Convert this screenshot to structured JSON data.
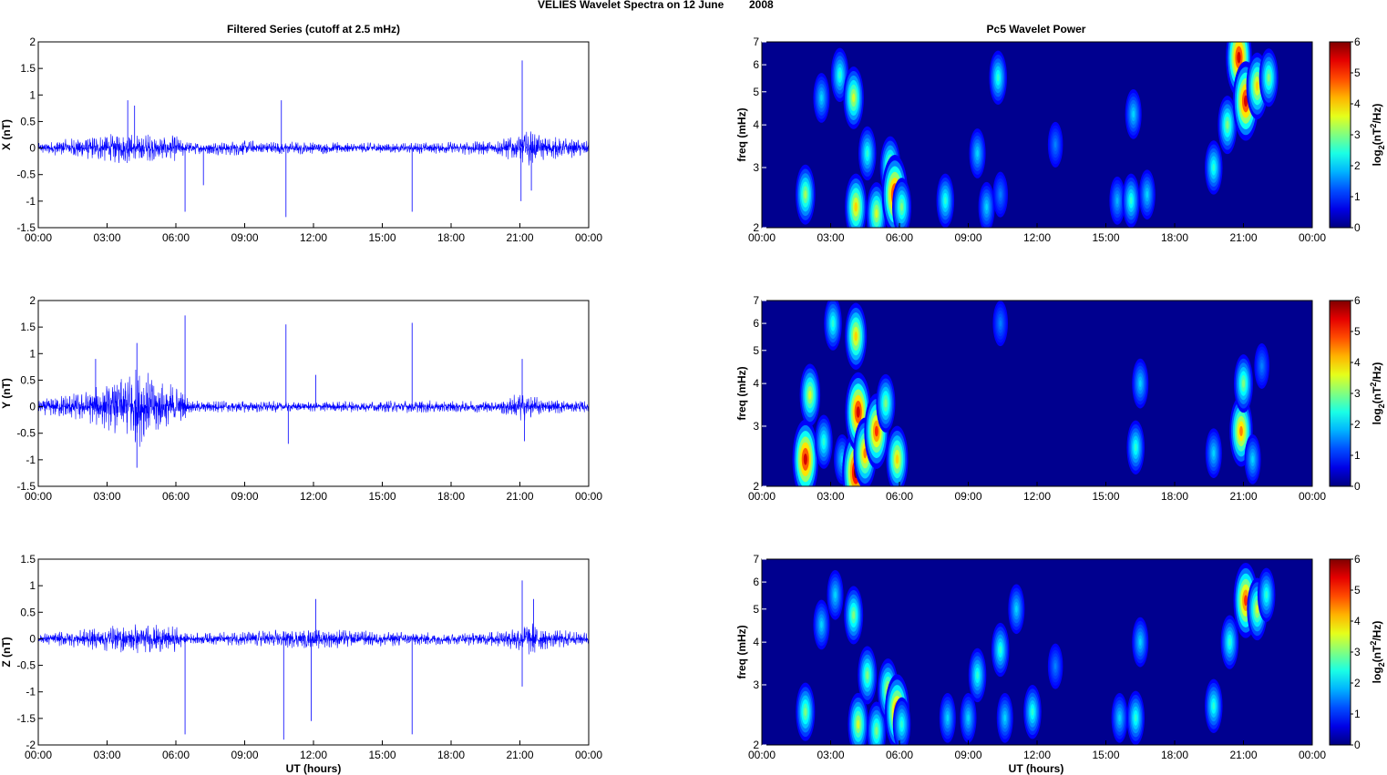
{
  "figure": {
    "title_left": "VELIES Wavelet Spectra on 12 June",
    "title_right": "2008",
    "left_column_title": "Filtered Series (cutoff at 2.5 mHz)",
    "right_column_title": "Pc5 Wavelet Power",
    "x_axis_label": "UT (hours)"
  },
  "colors": {
    "series_line": "#0000ff",
    "spectrogram_background": "#00008f"
  },
  "chart_data": [
    {
      "type": "line",
      "component": "X",
      "ylabel": "X (nT)",
      "xlim": [
        0,
        24
      ],
      "ylim": [
        -1.5,
        2
      ],
      "yticks": [
        -1.5,
        -1,
        -0.5,
        0,
        0.5,
        1,
        1.5,
        2
      ],
      "xticks": [
        "00:00",
        "03:00",
        "06:00",
        "09:00",
        "12:00",
        "15:00",
        "18:00",
        "21:00",
        "00:00"
      ],
      "noise_envelope": [
        [
          0,
          0.1
        ],
        [
          2,
          0.22
        ],
        [
          3.5,
          0.3
        ],
        [
          6,
          0.25
        ],
        [
          6.5,
          0.12
        ],
        [
          9,
          0.15
        ],
        [
          12,
          0.12
        ],
        [
          16,
          0.1
        ],
        [
          20,
          0.15
        ],
        [
          21,
          0.3
        ],
        [
          21.5,
          0.35
        ],
        [
          22,
          0.25
        ],
        [
          24,
          0.15
        ]
      ],
      "spikes": [
        [
          3.9,
          0.9
        ],
        [
          6.4,
          -1.2
        ],
        [
          7.2,
          -0.7
        ],
        [
          10.6,
          0.9
        ],
        [
          10.8,
          -1.3
        ],
        [
          16.3,
          -1.2
        ],
        [
          21.1,
          1.65
        ],
        [
          21.05,
          -1.0
        ],
        [
          21.5,
          -0.8
        ],
        [
          4.2,
          0.8
        ]
      ]
    },
    {
      "type": "line",
      "component": "Y",
      "ylabel": "Y (nT)",
      "xlim": [
        0,
        24
      ],
      "ylim": [
        -1.5,
        2
      ],
      "yticks": [
        -1.5,
        -1,
        -0.5,
        0,
        0.5,
        1,
        1.5,
        2
      ],
      "xticks": [
        "00:00",
        "03:00",
        "06:00",
        "09:00",
        "12:00",
        "15:00",
        "18:00",
        "21:00",
        "00:00"
      ],
      "noise_envelope": [
        [
          0,
          0.15
        ],
        [
          2,
          0.3
        ],
        [
          3.5,
          0.55
        ],
        [
          4.3,
          0.8
        ],
        [
          5.2,
          0.55
        ],
        [
          6.3,
          0.35
        ],
        [
          6.6,
          0.12
        ],
        [
          9,
          0.12
        ],
        [
          12,
          0.1
        ],
        [
          16,
          0.12
        ],
        [
          20,
          0.12
        ],
        [
          21,
          0.3
        ],
        [
          22,
          0.15
        ],
        [
          24,
          0.12
        ]
      ],
      "spikes": [
        [
          2.5,
          0.9
        ],
        [
          4.3,
          1.2
        ],
        [
          4.3,
          -1.15
        ],
        [
          6.4,
          1.72
        ],
        [
          10.8,
          1.55
        ],
        [
          10.9,
          -0.7
        ],
        [
          12.1,
          0.6
        ],
        [
          16.3,
          1.58
        ],
        [
          21.1,
          0.9
        ],
        [
          21.2,
          -0.65
        ]
      ]
    },
    {
      "type": "line",
      "component": "Z",
      "ylabel": "Z (nT)",
      "xlim": [
        0,
        24
      ],
      "ylim": [
        -2,
        1.5
      ],
      "yticks": [
        -2,
        -1.5,
        -1,
        -0.5,
        0,
        0.5,
        1,
        1.5
      ],
      "xticks": [
        "00:00",
        "03:00",
        "06:00",
        "09:00",
        "12:00",
        "15:00",
        "18:00",
        "21:00",
        "00:00"
      ],
      "noise_envelope": [
        [
          0,
          0.1
        ],
        [
          2,
          0.2
        ],
        [
          4,
          0.3
        ],
        [
          6,
          0.25
        ],
        [
          6.5,
          0.1
        ],
        [
          9,
          0.15
        ],
        [
          12,
          0.2
        ],
        [
          15,
          0.15
        ],
        [
          18,
          0.12
        ],
        [
          20,
          0.15
        ],
        [
          21.5,
          0.35
        ],
        [
          22.2,
          0.2
        ],
        [
          24,
          0.12
        ]
      ],
      "spikes": [
        [
          6.4,
          -1.8
        ],
        [
          10.7,
          -1.9
        ],
        [
          11.9,
          -1.55
        ],
        [
          12.1,
          0.75
        ],
        [
          16.3,
          -1.8
        ],
        [
          21.1,
          1.1
        ],
        [
          21.1,
          -0.9
        ],
        [
          21.6,
          0.75
        ]
      ]
    },
    {
      "type": "heatmap",
      "component": "X",
      "ylabel": "freq (mHz)",
      "colorbar_label": "log2(nT^2/Hz)",
      "xlim": [
        0,
        24
      ],
      "ylim": [
        2,
        7
      ],
      "yscale": "log",
      "yticks": [
        2,
        3,
        4,
        5,
        6,
        7
      ],
      "clim": [
        0,
        6
      ],
      "cticks": [
        0,
        1,
        2,
        3,
        4,
        5,
        6
      ],
      "xticks": [
        "00:00",
        "03:00",
        "06:00",
        "09:00",
        "12:00",
        "15:00",
        "18:00",
        "21:00",
        "00:00"
      ],
      "blobs": [
        [
          1.9,
          2.5,
          3.2
        ],
        [
          2.6,
          4.8,
          2.0
        ],
        [
          3.4,
          5.6,
          2.5
        ],
        [
          4.0,
          4.8,
          3.5
        ],
        [
          4.1,
          2.3,
          4.0
        ],
        [
          4.6,
          3.3,
          2.5
        ],
        [
          5.0,
          2.2,
          3.5
        ],
        [
          5.6,
          3.0,
          3.5
        ],
        [
          5.8,
          2.5,
          5.5
        ],
        [
          6.1,
          2.3,
          3.0
        ],
        [
          8.0,
          2.4,
          2.5
        ],
        [
          9.4,
          3.3,
          2.0
        ],
        [
          9.8,
          2.3,
          2.0
        ],
        [
          10.3,
          5.5,
          2.5
        ],
        [
          10.4,
          2.5,
          1.5
        ],
        [
          12.8,
          3.5,
          1.5
        ],
        [
          15.5,
          2.4,
          1.8
        ],
        [
          16.1,
          2.4,
          2.5
        ],
        [
          16.2,
          4.3,
          2.0
        ],
        [
          16.8,
          2.5,
          2.0
        ],
        [
          19.7,
          3.0,
          2.5
        ],
        [
          20.3,
          4.0,
          3.0
        ],
        [
          20.8,
          6.3,
          5.5
        ],
        [
          21.1,
          4.7,
          5.5
        ],
        [
          21.6,
          5.2,
          4.0
        ],
        [
          22.1,
          5.5,
          3.0
        ]
      ]
    },
    {
      "type": "heatmap",
      "component": "Y",
      "ylabel": "freq (mHz)",
      "colorbar_label": "log2(nT^2/Hz)",
      "xlim": [
        0,
        24
      ],
      "ylim": [
        2,
        7
      ],
      "yscale": "log",
      "yticks": [
        2,
        3,
        4,
        5,
        6,
        7
      ],
      "clim": [
        0,
        6
      ],
      "cticks": [
        0,
        1,
        2,
        3,
        4,
        5,
        6
      ],
      "xticks": [
        "00:00",
        "03:00",
        "06:00",
        "09:00",
        "12:00",
        "15:00",
        "18:00",
        "21:00",
        "00:00"
      ],
      "blobs": [
        [
          1.9,
          2.4,
          5.5
        ],
        [
          2.1,
          3.7,
          3.5
        ],
        [
          2.7,
          2.7,
          2.5
        ],
        [
          3.1,
          6.0,
          2.5
        ],
        [
          3.5,
          2.4,
          2.0
        ],
        [
          4.1,
          2.2,
          6.0
        ],
        [
          4.2,
          3.3,
          5.5
        ],
        [
          4.1,
          5.5,
          4.0
        ],
        [
          4.5,
          2.5,
          4.5
        ],
        [
          5.0,
          2.9,
          5.0
        ],
        [
          5.4,
          3.5,
          3.0
        ],
        [
          5.9,
          2.4,
          4.0
        ],
        [
          10.4,
          6.0,
          1.5
        ],
        [
          16.3,
          2.6,
          2.5
        ],
        [
          16.5,
          4.0,
          2.0
        ],
        [
          19.7,
          2.5,
          2.0
        ],
        [
          20.9,
          2.9,
          4.5
        ],
        [
          21.0,
          4.0,
          3.0
        ],
        [
          21.4,
          2.4,
          2.0
        ],
        [
          21.8,
          4.5,
          1.5
        ]
      ]
    },
    {
      "type": "heatmap",
      "component": "Z",
      "ylabel": "freq (mHz)",
      "colorbar_label": "log2(nT^2/Hz)",
      "xlim": [
        0,
        24
      ],
      "ylim": [
        2,
        7
      ],
      "yscale": "log",
      "yticks": [
        2,
        3,
        4,
        5,
        6,
        7
      ],
      "clim": [
        0,
        6
      ],
      "cticks": [
        0,
        1,
        2,
        3,
        4,
        5,
        6
      ],
      "xticks": [
        "00:00",
        "03:00",
        "06:00",
        "09:00",
        "12:00",
        "15:00",
        "18:00",
        "21:00",
        "00:00"
      ],
      "blobs": [
        [
          1.9,
          2.5,
          3.0
        ],
        [
          2.6,
          4.5,
          2.0
        ],
        [
          3.2,
          5.5,
          2.0
        ],
        [
          4.0,
          4.8,
          3.0
        ],
        [
          4.2,
          2.3,
          3.5
        ],
        [
          4.6,
          3.2,
          3.0
        ],
        [
          5.0,
          2.2,
          3.0
        ],
        [
          5.5,
          2.9,
          3.5
        ],
        [
          5.9,
          2.5,
          5.0
        ],
        [
          6.1,
          2.3,
          2.5
        ],
        [
          8.1,
          2.4,
          2.0
        ],
        [
          9.0,
          2.4,
          2.0
        ],
        [
          9.4,
          3.2,
          2.5
        ],
        [
          10.4,
          3.8,
          2.5
        ],
        [
          10.6,
          2.4,
          2.0
        ],
        [
          11.1,
          5.0,
          2.0
        ],
        [
          11.8,
          2.5,
          2.5
        ],
        [
          12.8,
          3.4,
          1.5
        ],
        [
          15.6,
          2.4,
          2.0
        ],
        [
          16.3,
          2.4,
          2.5
        ],
        [
          16.5,
          4.0,
          2.0
        ],
        [
          19.7,
          2.6,
          2.5
        ],
        [
          20.4,
          4.0,
          2.5
        ],
        [
          21.1,
          5.3,
          5.0
        ],
        [
          21.6,
          5.0,
          3.5
        ],
        [
          22.0,
          5.5,
          2.5
        ]
      ]
    }
  ]
}
